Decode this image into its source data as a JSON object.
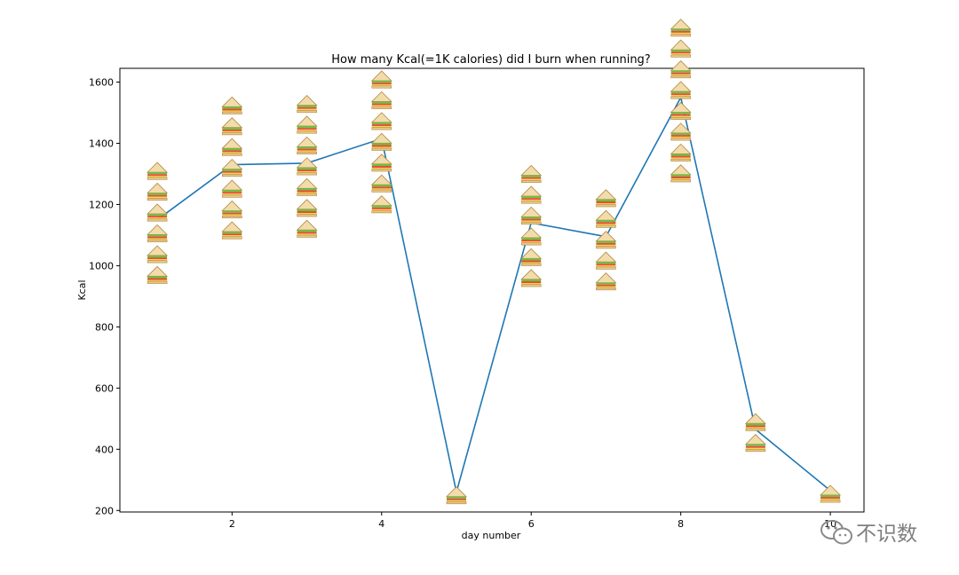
{
  "chart_data": {
    "type": "line",
    "title": "How many Kcal(=1K calories) did I burn when running?",
    "xlabel": "day number",
    "ylabel": "Kcal",
    "x": [
      1,
      2,
      3,
      4,
      5,
      6,
      7,
      8,
      9,
      10
    ],
    "y": [
      1150,
      1330,
      1335,
      1415,
      260,
      1140,
      1095,
      1550,
      465,
      265
    ],
    "xlim": [
      0.5,
      10.45
    ],
    "ylim": [
      195,
      1645
    ],
    "xticks": [
      2,
      4,
      6,
      8,
      10
    ],
    "yticks": [
      200,
      400,
      600,
      800,
      1000,
      1200,
      1400,
      1600
    ],
    "grid": false,
    "line_color": "#1f77b4",
    "marker": "sandwich-icon"
  },
  "watermark": {
    "icon": "wechat-icon",
    "text": "不识数"
  }
}
